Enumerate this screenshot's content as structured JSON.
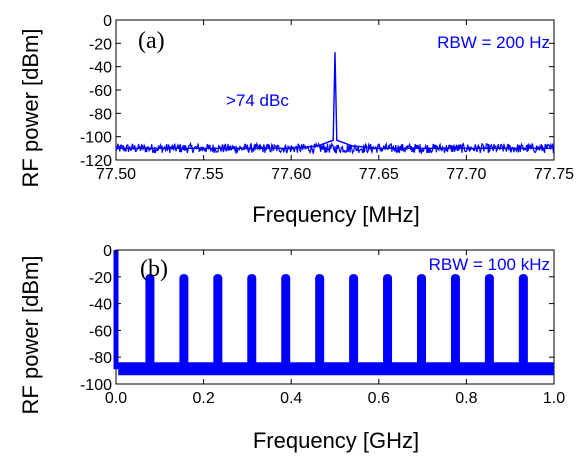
{
  "figure": {
    "trace_color": "#0000ff"
  },
  "chart_data": [
    {
      "type": "line",
      "panel_label": "(a)",
      "xlabel": "Frequency [MHz]",
      "ylabel": "RF power [dBm]",
      "xlim": [
        77.5,
        77.75
      ],
      "ylim": [
        -120,
        0
      ],
      "x_ticks": [
        "77.50",
        "77.55",
        "77.60",
        "77.65",
        "77.70",
        "77.75"
      ],
      "y_ticks": [
        "0",
        "-20",
        "-40",
        "-60",
        "-80",
        "-100",
        "-120"
      ],
      "annotations": [
        "RBW = 200 Hz",
        ">74 dBc"
      ],
      "rbw": "RBW = 200 Hz",
      "contrast_text": ">74 dBc",
      "noise_floor_dbm": -110,
      "series": [
        {
          "x": [
            77.5,
            77.55,
            77.6,
            77.615,
            77.624,
            77.625,
            77.626,
            77.635,
            77.65,
            77.7,
            77.75
          ],
          "y": [
            -110,
            -110,
            -110,
            -108,
            -103,
            -28,
            -103,
            -108,
            -110,
            -110,
            -110
          ]
        }
      ],
      "grid": false
    },
    {
      "type": "line",
      "panel_label": "(b)",
      "xlabel": "Frequency [GHz]",
      "ylabel": "RF power  [dBm]",
      "xlim": [
        0.0,
        1.0
      ],
      "ylim": [
        -100,
        0
      ],
      "x_ticks": [
        "0.0",
        "0.2",
        "0.4",
        "0.6",
        "0.8",
        "1.0"
      ],
      "y_ticks": [
        "0",
        "-20",
        "-40",
        "-60",
        "-80",
        "-100"
      ],
      "annotations": [
        "RBW = 100 kHz"
      ],
      "rbw": "RBW = 100 kHz",
      "noise_floor_dbm": -89,
      "series": [
        {
          "x": [
            0.0,
            0.0775,
            0.155,
            0.2325,
            0.31,
            0.3875,
            0.465,
            0.5425,
            0.62,
            0.6975,
            0.775,
            0.8525,
            0.93
          ],
          "y": [
            0,
            -18,
            -18,
            -18,
            -18,
            -18,
            -18,
            -18,
            -18,
            -18,
            -18,
            -18,
            -18
          ]
        }
      ],
      "grid": false
    }
  ]
}
